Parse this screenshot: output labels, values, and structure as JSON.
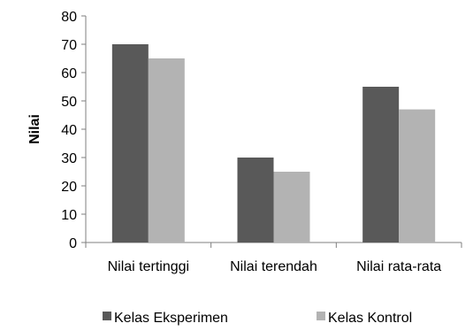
{
  "chart_data": {
    "type": "bar",
    "title": "",
    "xlabel": "",
    "ylabel": "Nilai",
    "ylim": [
      0,
      80
    ],
    "yticks": [
      0,
      10,
      20,
      30,
      40,
      50,
      60,
      70,
      80
    ],
    "categories": [
      "Nilai tertinggi",
      "Nilai terendah",
      "Nilai rata-rata"
    ],
    "series": [
      {
        "name": "Kelas Eksperimen",
        "values": [
          70,
          30,
          55
        ],
        "color": "#595959"
      },
      {
        "name": "Kelas Kontrol",
        "values": [
          65,
          25,
          47
        ],
        "color": "#b3b3b3"
      }
    ],
    "grid": false,
    "legend_position": "bottom"
  }
}
